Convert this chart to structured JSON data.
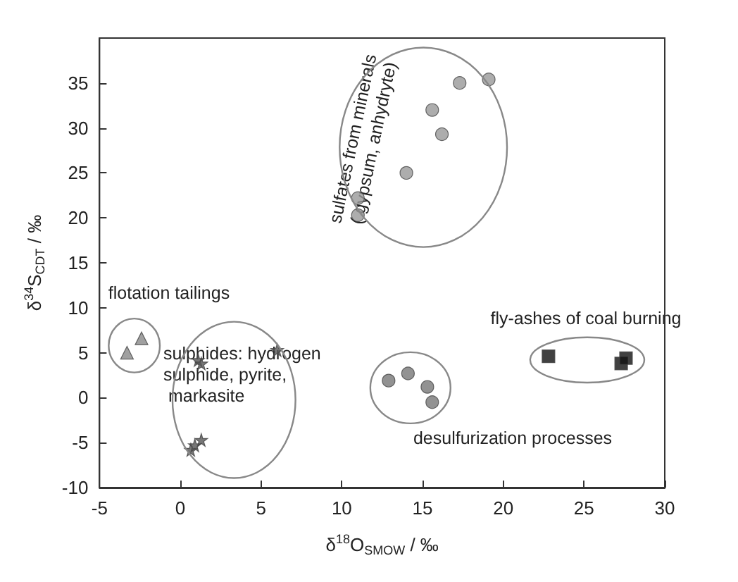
{
  "chart_data": {
    "type": "scatter",
    "xlabel": "δ$^{18}$O$_{SMOW}$ / ‰",
    "ylabel": "δ$^{34}$S$_{CDT}$ / ‰",
    "xlim": [
      -5,
      30
    ],
    "xticks": [
      -5,
      0,
      5,
      10,
      15,
      20,
      25,
      30
    ],
    "ylim": [
      -10,
      40
    ],
    "yticks": [
      -10,
      -5,
      0,
      5,
      10,
      15,
      20,
      25,
      30,
      35
    ],
    "grid": false,
    "series": [
      {
        "color": "#999999",
        "marker": "circle",
        "x": [
          11.0,
          11.0,
          14.0,
          15.6,
          16.2,
          17.3,
          19.1
        ],
        "values": [
          22.2,
          20.3,
          25.0,
          32.0,
          29.3,
          35.0,
          35.4
        ]
      },
      {
        "color": "#888888",
        "marker": "triangle",
        "x": [
          -3.3,
          -2.4
        ],
        "values": [
          5.0,
          6.6
        ]
      },
      {
        "color": "#555555",
        "marker": "star",
        "x": [
          1.1,
          1.3,
          6.0,
          0.65,
          0.9,
          1.3
        ],
        "values": [
          4.2,
          3.8,
          5.3,
          -5.8,
          -5.3,
          -4.7
        ]
      },
      {
        "color": "#777777",
        "marker": "circle",
        "x": [
          12.9,
          14.1,
          15.3,
          15.6
        ],
        "values": [
          1.9,
          2.7,
          1.2,
          -0.5
        ]
      },
      {
        "color": "#111111",
        "marker": "square",
        "x": [
          22.8,
          27.3,
          27.6
        ],
        "values": [
          4.6,
          3.8,
          4.4
        ]
      }
    ],
    "annotations": [
      "sulfates from minerals\n( gypsum, anhydryte)",
      "flotation tailings",
      "sulphides: hydrogen\nsulphide, pyrite,\n markasite",
      "desulfurization processes",
      "fly-ashes of coal burning"
    ]
  }
}
